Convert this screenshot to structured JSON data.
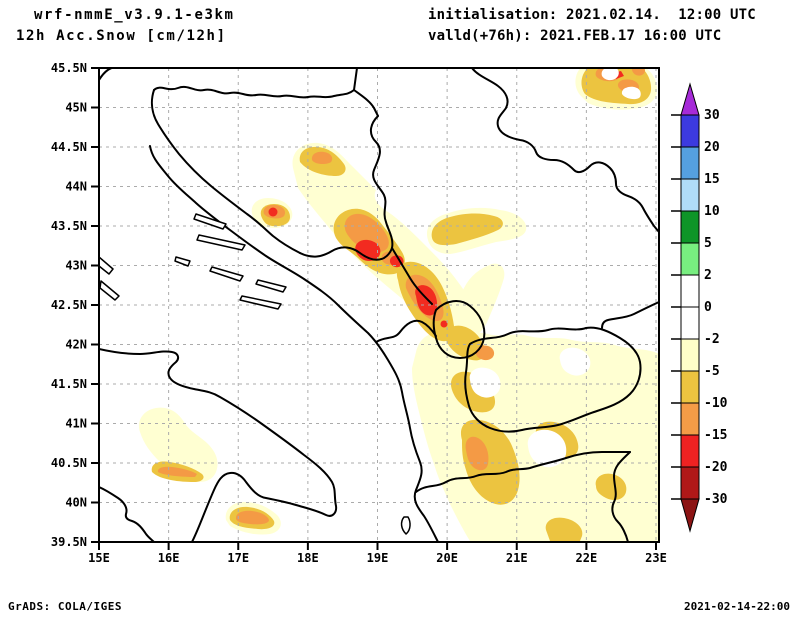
{
  "header": {
    "line1": "wrf-nmmE_v3.9.1-e3km",
    "line2": "12h Acc.Snow [cm/12h]",
    "init": "initialisation: 2021.02.14.  12:00 UTC",
    "valid": "valld(+76h): 2021.FEB.17 16:00 UTC"
  },
  "footer": {
    "left": "GrADS: COLA/IGES",
    "right": "2021-02-14-22:00"
  },
  "axes": {
    "lat_labels": [
      "45.5N",
      "45N",
      "44.5N",
      "44N",
      "43.5N",
      "43N",
      "42.5N",
      "42N",
      "41.5N",
      "41N",
      "40.5N",
      "40N",
      "39.5N"
    ],
    "lon_labels": [
      "15E",
      "16E",
      "17E",
      "18E",
      "19E",
      "20E",
      "21E",
      "22E",
      "23E"
    ]
  },
  "colorbar": {
    "labels": [
      "30",
      "20",
      "15",
      "10",
      "5",
      "2",
      "0",
      "-2",
      "-5",
      "-10",
      "-15",
      "-20",
      "-30"
    ],
    "segment_colors": [
      "#3C3AE0",
      "#55A0E0",
      "#B0DCF8",
      "#0E9528",
      "#78EE80",
      "#FFFFFF",
      "#FFFFFF",
      "#FFFFC8",
      "#ECC440",
      "#F49C47",
      "#EE2222",
      "#B01818"
    ],
    "arrow_top_color": "#A62BD8",
    "arrow_bottom_color": "#8C1414"
  },
  "shading": {
    "light": "#FFFFD2",
    "moderate": "#ECC440",
    "heavy": "#F49A45",
    "extreme": "#F22B20",
    "hole": "#FFFFFF",
    "grid_color": "#ABABAB"
  },
  "chart_data": {
    "type": "heatmap",
    "title": "12h Acc.Snow [cm/12h]",
    "x": {
      "range": [
        15,
        23
      ],
      "ticks": [
        "15E",
        "16E",
        "17E",
        "18E",
        "19E",
        "20E",
        "21E",
        "22E",
        "23E"
      ]
    },
    "y": {
      "range": [
        39.5,
        45.5
      ],
      "ticks": [
        "39.5N",
        "40N",
        "40.5N",
        "41N",
        "41.5N",
        "42N",
        "42.5N",
        "43N",
        "43.5N",
        "44N",
        "44.5N",
        "45N",
        "45.5N"
      ]
    },
    "levels": [
      30,
      20,
      15,
      10,
      5,
      2,
      0,
      -2,
      -5,
      -10,
      -15,
      -20,
      -30
    ],
    "grid": "dashed, 0.5 deg latitude / 1 deg longitude",
    "legend_position": "right",
    "shaded_features": [
      {
        "area": "Bosnia/Montenegro mountains ~18.5-20E, 42.5-43.5N",
        "shade": "gold-orange band with red cores"
      },
      {
        "area": "S Serbia / Kosovo / N Macedonia / Albania ~19.5-23E, 39.5-42.5N",
        "shade": "pale yellow with gold patches"
      },
      {
        "area": "NE corner ~22.3-23E, 45.2-45.5N",
        "shade": "gold/orange blob"
      },
      {
        "area": "S Italy ~15.7-17.5E, 39.8-40.7N",
        "shade": "small gold/orange crescents"
      }
    ]
  }
}
